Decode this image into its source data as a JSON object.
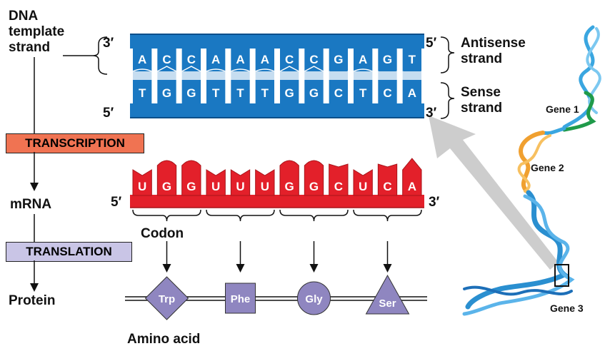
{
  "labels": {
    "dna_template": [
      "DNA",
      "template",
      "strand"
    ],
    "transcription": "TRANSCRIPTION",
    "mrna": "mRNA",
    "translation": "TRANSLATION",
    "protein": "Protein",
    "antisense": [
      "Antisense",
      "strand"
    ],
    "sense": [
      "Sense",
      "strand"
    ],
    "codon": "Codon",
    "amino_acid": "Amino acid",
    "end_3": "3′",
    "end_5": "5′"
  },
  "dna": {
    "antisense_bases": [
      "A",
      "C",
      "C",
      "A",
      "A",
      "A",
      "C",
      "C",
      "G",
      "A",
      "G",
      "T"
    ],
    "sense_bases": [
      "T",
      "G",
      "G",
      "T",
      "T",
      "T",
      "G",
      "G",
      "C",
      "T",
      "C",
      "A"
    ]
  },
  "mrna_bases": [
    "U",
    "G",
    "G",
    "U",
    "U",
    "U",
    "G",
    "G",
    "C",
    "U",
    "C",
    "A"
  ],
  "amino_acids": [
    {
      "name": "Trp",
      "shape": "diamond"
    },
    {
      "name": "Phe",
      "shape": "square"
    },
    {
      "name": "Gly",
      "shape": "circle"
    },
    {
      "name": "Ser",
      "shape": "triangle"
    }
  ],
  "genes": [
    "Gene 1",
    "Gene 2",
    "Gene 3"
  ],
  "colors": {
    "dna_blue": "#1a78c2",
    "dna_dark": "#0b4f8a",
    "mrna_red": "#e3202a",
    "amino": "#8f86c0",
    "transcription_box": "#f07352",
    "translation_box": "#c9c5e6",
    "gene1": "#1f9a4a",
    "gene2": "#f0a030",
    "gene3": "#2a8fd0",
    "arrow_gray": "#c8c8c8"
  }
}
